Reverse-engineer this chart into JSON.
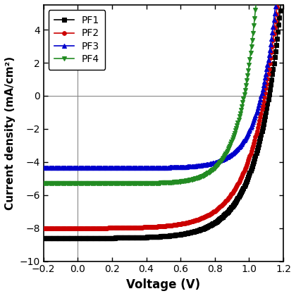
{
  "title": "",
  "xlabel": "Voltage (V)",
  "ylabel": "Current density (mA/cm²)",
  "xlim": [
    -0.2,
    1.2
  ],
  "ylim": [
    -10,
    5.5
  ],
  "yticks": [
    -10,
    -8,
    -6,
    -4,
    -2,
    0,
    2,
    4
  ],
  "xticks": [
    -0.2,
    0.0,
    0.2,
    0.4,
    0.6,
    0.8,
    1.0,
    1.2
  ],
  "series": [
    {
      "label": "PF1",
      "color": "#000000",
      "marker": "s",
      "marker_size": 4,
      "Jsc": -8.6,
      "Voc": 1.115,
      "n": 5.5,
      "Rs": 0.0
    },
    {
      "label": "PF2",
      "color": "#cc0000",
      "marker": "o",
      "marker_size": 4,
      "Jsc": -8.0,
      "Voc": 1.09,
      "n": 5.5,
      "Rs": 0.0
    },
    {
      "label": "PF3",
      "color": "#0000cc",
      "marker": "^",
      "marker_size": 4,
      "Jsc": -4.35,
      "Voc": 1.07,
      "n": 4.0,
      "Rs": 0.0
    },
    {
      "label": "PF4",
      "color": "#228B22",
      "marker": "v",
      "marker_size": 4,
      "Jsc": -5.3,
      "Voc": 0.97,
      "n": 3.8,
      "Rs": 0.0
    }
  ],
  "legend_loc": "upper left",
  "background_color": "#ffffff",
  "xlabel_fontsize": 12,
  "ylabel_fontsize": 11,
  "tick_fontsize": 10,
  "legend_fontsize": 10,
  "marker_every": 10,
  "line_width": 1.2
}
